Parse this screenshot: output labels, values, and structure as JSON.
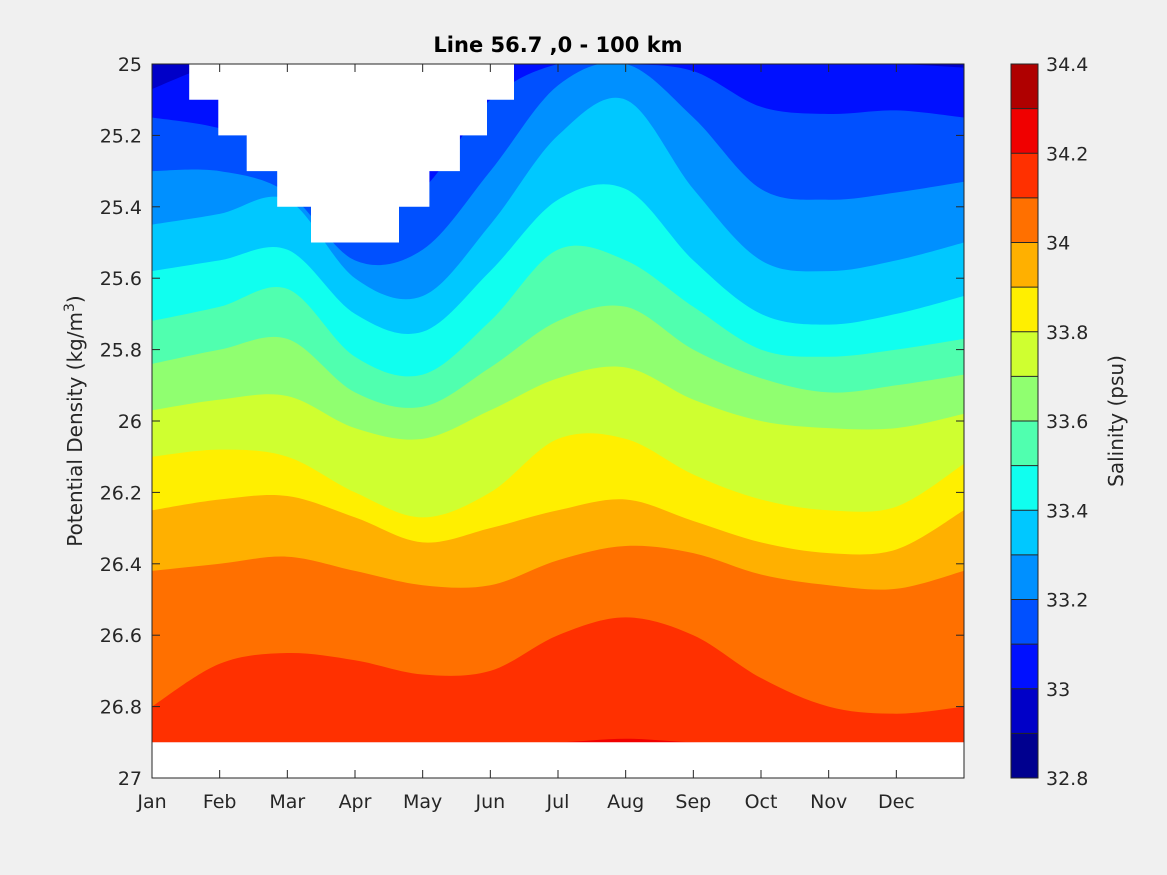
{
  "chart_data": {
    "type": "filled-contour",
    "title": "Line 56.7 ,0 - 100 km",
    "ylabel_prefix": "Potential Density (kg/m",
    "ylabel_sup": "3",
    "ylabel_suffix": ")",
    "colorbar_label": "Salinity (psu)",
    "xlim": [
      0,
      12
    ],
    "ylim": [
      25,
      27
    ],
    "y_reversed": true,
    "x_ticks": [
      {
        "value": 0,
        "label": "Jan"
      },
      {
        "value": 1,
        "label": "Feb"
      },
      {
        "value": 2,
        "label": "Mar"
      },
      {
        "value": 3,
        "label": "Apr"
      },
      {
        "value": 4,
        "label": "May"
      },
      {
        "value": 5,
        "label": "Jun"
      },
      {
        "value": 6,
        "label": "Jul"
      },
      {
        "value": 7,
        "label": "Aug"
      },
      {
        "value": 8,
        "label": "Sep"
      },
      {
        "value": 9,
        "label": "Oct"
      },
      {
        "value": 10,
        "label": "Nov"
      },
      {
        "value": 11,
        "label": "Dec"
      }
    ],
    "y_ticks": [
      {
        "value": 25,
        "label": "25"
      },
      {
        "value": 25.2,
        "label": "25.2"
      },
      {
        "value": 25.4,
        "label": "25.4"
      },
      {
        "value": 25.6,
        "label": "25.6"
      },
      {
        "value": 25.8,
        "label": "25.8"
      },
      {
        "value": 26,
        "label": "26"
      },
      {
        "value": 26.2,
        "label": "26.2"
      },
      {
        "value": 26.4,
        "label": "26.4"
      },
      {
        "value": 26.6,
        "label": "26.6"
      },
      {
        "value": 26.8,
        "label": "26.8"
      },
      {
        "value": 27,
        "label": "27"
      }
    ],
    "colorbar": {
      "clim": [
        32.8,
        34.4
      ],
      "ticks": [
        {
          "value": 32.8,
          "label": "32.8"
        },
        {
          "value": 33,
          "label": "33"
        },
        {
          "value": 33.2,
          "label": "33.2"
        },
        {
          "value": 33.4,
          "label": "33.4"
        },
        {
          "value": 33.6,
          "label": "33.6"
        },
        {
          "value": 33.8,
          "label": "33.8"
        },
        {
          "value": 34,
          "label": "34"
        },
        {
          "value": 34.2,
          "label": "34.2"
        },
        {
          "value": 34.4,
          "label": "34.4"
        }
      ],
      "bands": [
        {
          "from": 32.8,
          "to": 32.9,
          "color": "#00008f"
        },
        {
          "from": 32.9,
          "to": 33.0,
          "color": "#0000c8"
        },
        {
          "from": 33.0,
          "to": 33.1,
          "color": "#0010ff"
        },
        {
          "from": 33.1,
          "to": 33.2,
          "color": "#0050ff"
        },
        {
          "from": 33.2,
          "to": 33.3,
          "color": "#0090ff"
        },
        {
          "from": 33.3,
          "to": 33.4,
          "color": "#00c8ff"
        },
        {
          "from": 33.4,
          "to": 33.5,
          "color": "#10ffef"
        },
        {
          "from": 33.5,
          "to": 33.6,
          "color": "#50ffaf"
        },
        {
          "from": 33.6,
          "to": 33.7,
          "color": "#90ff70"
        },
        {
          "from": 33.7,
          "to": 33.8,
          "color": "#cfff30"
        },
        {
          "from": 33.8,
          "to": 33.9,
          "color": "#ffef00"
        },
        {
          "from": 33.9,
          "to": 34.0,
          "color": "#ffb000"
        },
        {
          "from": 34.0,
          "to": 34.1,
          "color": "#ff7000"
        },
        {
          "from": 34.1,
          "to": 34.2,
          "color": "#ff3000"
        },
        {
          "from": 34.2,
          "to": 34.3,
          "color": "#f00000"
        },
        {
          "from": 34.3,
          "to": 34.4,
          "color": "#af0000"
        }
      ]
    },
    "contour_x": [
      0,
      1,
      2,
      3,
      4,
      5,
      6,
      7,
      8,
      9,
      10,
      11,
      12
    ],
    "contour_boundaries": [
      {
        "level": 33.0,
        "y": [
          25.07,
          25.0,
          25.0,
          25.0,
          25.0,
          25.0,
          25.0,
          25.0,
          25.0,
          25.0,
          25.0,
          25.0,
          25.01
        ]
      },
      {
        "level": 33.1,
        "y": [
          25.15,
          25.18,
          25.25,
          25.42,
          25.35,
          25.1,
          25.0,
          25.0,
          25.02,
          25.12,
          25.14,
          25.13,
          25.15
        ]
      },
      {
        "level": 33.2,
        "y": [
          25.3,
          25.3,
          25.36,
          25.55,
          25.52,
          25.3,
          25.06,
          25.0,
          25.15,
          25.35,
          25.38,
          25.36,
          25.33
        ]
      },
      {
        "level": 33.3,
        "y": [
          25.45,
          25.42,
          25.38,
          25.6,
          25.65,
          25.45,
          25.2,
          25.1,
          25.35,
          25.55,
          25.58,
          25.55,
          25.5
        ]
      },
      {
        "level": 33.4,
        "y": [
          25.58,
          25.55,
          25.52,
          25.7,
          25.75,
          25.58,
          25.38,
          25.35,
          25.55,
          25.7,
          25.73,
          25.7,
          25.65
        ]
      },
      {
        "level": 33.5,
        "y": [
          25.72,
          25.68,
          25.63,
          25.82,
          25.87,
          25.72,
          25.52,
          25.55,
          25.68,
          25.8,
          25.82,
          25.8,
          25.77
        ]
      },
      {
        "level": 33.6,
        "y": [
          25.84,
          25.8,
          25.77,
          25.92,
          25.96,
          25.85,
          25.72,
          25.68,
          25.8,
          25.88,
          25.92,
          25.9,
          25.87
        ]
      },
      {
        "level": 33.7,
        "y": [
          25.97,
          25.94,
          25.93,
          26.02,
          26.05,
          25.97,
          25.88,
          25.85,
          25.94,
          26.0,
          26.02,
          26.02,
          25.98
        ]
      },
      {
        "level": 33.8,
        "y": [
          26.1,
          26.08,
          26.1,
          26.2,
          26.27,
          26.2,
          26.05,
          26.05,
          26.15,
          26.22,
          26.25,
          26.24,
          26.12
        ]
      },
      {
        "level": 33.9,
        "y": [
          26.25,
          26.22,
          26.21,
          26.27,
          26.34,
          26.3,
          26.25,
          26.22,
          26.28,
          26.34,
          26.37,
          26.36,
          26.25
        ]
      },
      {
        "level": 34.0,
        "y": [
          26.42,
          26.4,
          26.38,
          26.42,
          26.46,
          26.46,
          26.39,
          26.35,
          26.37,
          26.43,
          26.46,
          26.47,
          26.42
        ]
      },
      {
        "level": 34.1,
        "y": [
          26.8,
          26.68,
          26.65,
          26.67,
          26.71,
          26.7,
          26.6,
          26.55,
          26.6,
          26.72,
          26.8,
          26.82,
          26.8
        ]
      },
      {
        "level": 34.2,
        "y": [
          26.9,
          26.9,
          26.9,
          26.9,
          26.9,
          26.9,
          26.9,
          26.89,
          26.9,
          26.9,
          26.9,
          26.9,
          26.9
        ]
      }
    ],
    "top_fill_color": "#0000c8",
    "no_data_regions": [
      {
        "name": "no-data-notch",
        "outline": [
          [
            0.55,
            25.0
          ],
          [
            5.35,
            25.0
          ],
          [
            5.35,
            25.1
          ],
          [
            4.95,
            25.1
          ],
          [
            4.95,
            25.2
          ],
          [
            4.55,
            25.2
          ],
          [
            4.55,
            25.3
          ],
          [
            4.1,
            25.3
          ],
          [
            4.1,
            25.4
          ],
          [
            3.65,
            25.4
          ],
          [
            3.65,
            25.5
          ],
          [
            2.35,
            25.5
          ],
          [
            2.35,
            25.4
          ],
          [
            1.85,
            25.4
          ],
          [
            1.85,
            25.3
          ],
          [
            1.4,
            25.3
          ],
          [
            1.4,
            25.2
          ],
          [
            0.98,
            25.2
          ],
          [
            0.98,
            25.1
          ],
          [
            0.55,
            25.1
          ]
        ]
      },
      {
        "name": "no-data-bottom-band",
        "outline": [
          [
            0,
            26.9
          ],
          [
            12,
            26.9
          ],
          [
            12,
            27.0
          ],
          [
            0,
            27.0
          ]
        ]
      }
    ]
  }
}
